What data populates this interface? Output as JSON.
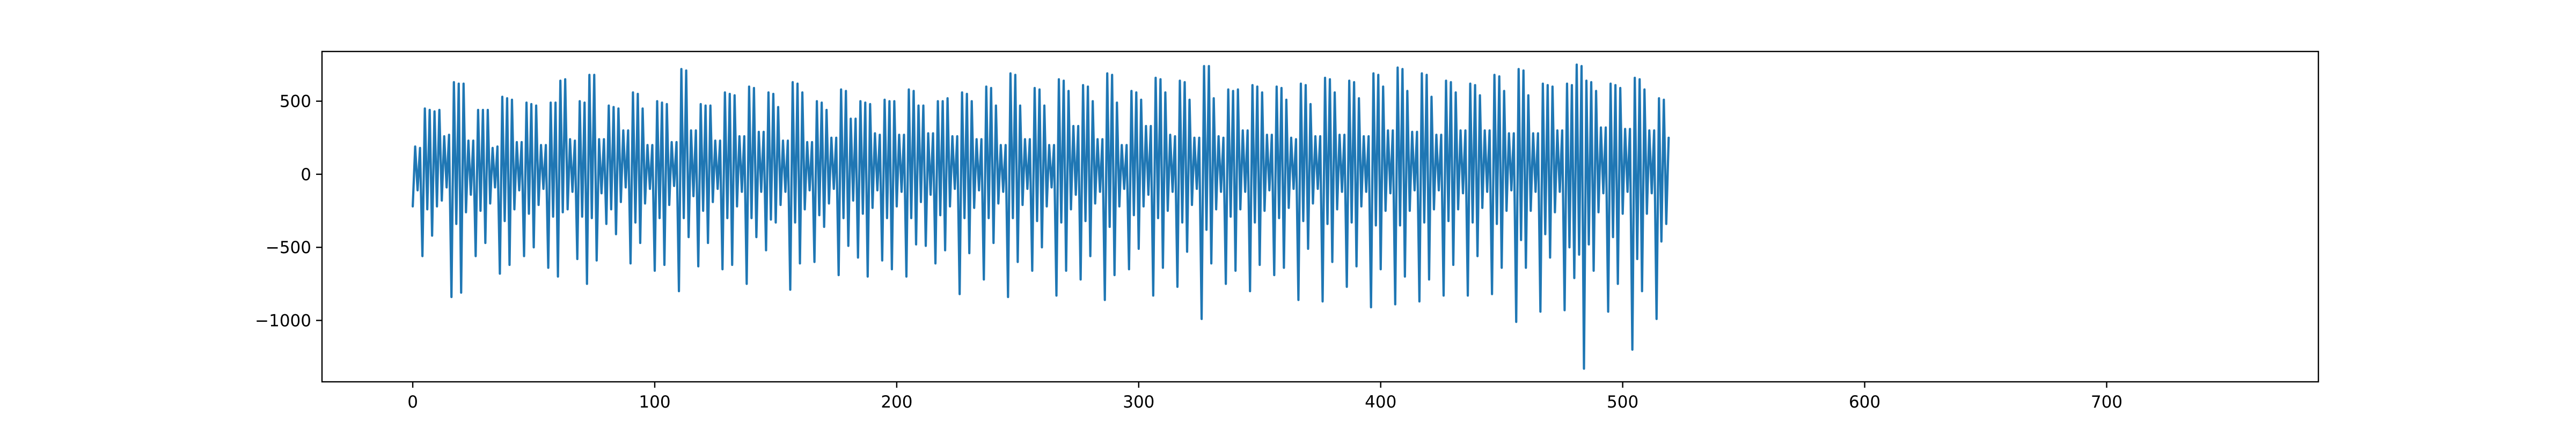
{
  "chart_data": {
    "type": "line",
    "title": "",
    "xlabel": "",
    "ylabel": "",
    "xlim": [
      -37.5,
      787.5
    ],
    "ylim": [
      -1420,
      840
    ],
    "grid": false,
    "legend": "none",
    "x_ticks": [
      0,
      100,
      200,
      300,
      400,
      500,
      600,
      700
    ],
    "x_tick_labels": [
      "0",
      "100",
      "200",
      "300",
      "400",
      "500",
      "600",
      "700"
    ],
    "y_ticks": [
      500,
      0,
      -500,
      -1000
    ],
    "y_tick_labels": [
      "500",
      "0",
      "−500",
      "−1000"
    ],
    "series": [
      {
        "color": "#1f77b4",
        "x_start": 0,
        "x_step": 1,
        "values": [
          -220,
          190,
          -110,
          180,
          -560,
          450,
          -240,
          440,
          -420,
          430,
          -220,
          440,
          -180,
          260,
          -90,
          270,
          -840,
          630,
          -340,
          620,
          -810,
          620,
          -260,
          230,
          -140,
          230,
          -560,
          440,
          -250,
          440,
          -470,
          440,
          -200,
          180,
          -90,
          190,
          -680,
          530,
          -320,
          520,
          -620,
          510,
          -240,
          220,
          -110,
          220,
          -560,
          490,
          -270,
          480,
          -500,
          470,
          -210,
          200,
          -100,
          200,
          -640,
          490,
          -290,
          490,
          -700,
          640,
          -260,
          650,
          -240,
          240,
          -120,
          230,
          -580,
          500,
          -290,
          490,
          -750,
          680,
          -300,
          680,
          -590,
          240,
          -130,
          240,
          -340,
          470,
          -240,
          460,
          -410,
          450,
          -190,
          300,
          -90,
          300,
          -610,
          560,
          -330,
          550,
          -470,
          450,
          -200,
          200,
          -100,
          200,
          -660,
          500,
          -300,
          490,
          -620,
          480,
          -210,
          220,
          -80,
          220,
          -800,
          720,
          -300,
          710,
          -430,
          300,
          -150,
          300,
          -630,
          480,
          -250,
          470,
          -470,
          470,
          -190,
          230,
          -100,
          230,
          -650,
          560,
          -300,
          550,
          -620,
          540,
          -220,
          260,
          -120,
          260,
          -750,
          600,
          -300,
          590,
          -430,
          290,
          -120,
          290,
          -520,
          560,
          -310,
          550,
          -330,
          460,
          -210,
          230,
          -120,
          230,
          -790,
          630,
          -330,
          620,
          -610,
          560,
          -240,
          220,
          -110,
          220,
          -600,
          500,
          -280,
          490,
          -360,
          440,
          -200,
          250,
          -100,
          250,
          -690,
          580,
          -300,
          570,
          -490,
          380,
          -180,
          380,
          -570,
          500,
          -270,
          490,
          -700,
          480,
          -230,
          280,
          -110,
          270,
          -590,
          510,
          -300,
          500,
          -650,
          500,
          -220,
          270,
          -120,
          270,
          -700,
          580,
          -300,
          570,
          -480,
          470,
          -190,
          470,
          -490,
          280,
          -140,
          280,
          -610,
          500,
          -280,
          500,
          -520,
          520,
          -220,
          260,
          -100,
          260,
          -820,
          560,
          -300,
          550,
          -540,
          500,
          -230,
          240,
          -110,
          240,
          -720,
          600,
          -300,
          590,
          -470,
          470,
          -200,
          200,
          -120,
          200,
          -840,
          690,
          -300,
          680,
          -600,
          470,
          -210,
          240,
          -100,
          240,
          -660,
          590,
          -320,
          580,
          -500,
          470,
          -220,
          200,
          -90,
          200,
          -830,
          650,
          -330,
          640,
          -660,
          570,
          -240,
          330,
          -140,
          330,
          -720,
          610,
          -320,
          600,
          -560,
          500,
          -200,
          240,
          -120,
          240,
          -860,
          690,
          -360,
          680,
          -690,
          490,
          -220,
          200,
          -100,
          200,
          -650,
          570,
          -280,
          560,
          -510,
          510,
          -220,
          330,
          -140,
          330,
          -830,
          660,
          -300,
          650,
          -640,
          560,
          -250,
          270,
          -120,
          260,
          -770,
          640,
          -330,
          630,
          -530,
          510,
          -210,
          250,
          -100,
          250,
          -990,
          740,
          -380,
          740,
          -610,
          520,
          -240,
          260,
          -120,
          250,
          -750,
          580,
          -290,
          570,
          -660,
          580,
          -240,
          300,
          -120,
          300,
          -800,
          610,
          -330,
          600,
          -620,
          560,
          -250,
          270,
          -110,
          270,
          -690,
          600,
          -300,
          590,
          -640,
          510,
          -230,
          250,
          -100,
          240,
          -860,
          620,
          -320,
          610,
          -510,
          480,
          -200,
          260,
          -100,
          260,
          -870,
          660,
          -340,
          650,
          -600,
          560,
          -240,
          270,
          -120,
          270,
          -770,
          640,
          -330,
          630,
          -630,
          520,
          -220,
          260,
          -120,
          260,
          -910,
          690,
          -350,
          680,
          -650,
          600,
          -250,
          300,
          -130,
          300,
          -890,
          730,
          -350,
          720,
          -700,
          570,
          -250,
          290,
          -110,
          290,
          -870,
          690,
          -330,
          680,
          -720,
          530,
          -240,
          270,
          -110,
          270,
          -830,
          640,
          -320,
          630,
          -620,
          560,
          -240,
          300,
          -130,
          300,
          -830,
          620,
          -330,
          610,
          -560,
          540,
          -230,
          300,
          -120,
          300,
          -820,
          680,
          -340,
          670,
          -640,
          570,
          -250,
          280,
          -110,
          280,
          -1010,
          720,
          -450,
          710,
          -640,
          540,
          -250,
          280,
          -120,
          280,
          -940,
          620,
          -410,
          610,
          -570,
          600,
          -260,
          300,
          -120,
          300,
          -930,
          620,
          -500,
          610,
          -710,
          750,
          -550,
          740,
          -1330,
          640,
          -480,
          630,
          -660,
          570,
          -260,
          320,
          -130,
          320,
          -940,
          620,
          -430,
          610,
          -750,
          590,
          -270,
          310,
          -120,
          310,
          -1200,
          660,
          -580,
          650,
          -800,
          580,
          -270,
          300,
          -130,
          300,
          -990,
          520,
          -460,
          510,
          -340,
          250
        ]
      }
    ]
  }
}
